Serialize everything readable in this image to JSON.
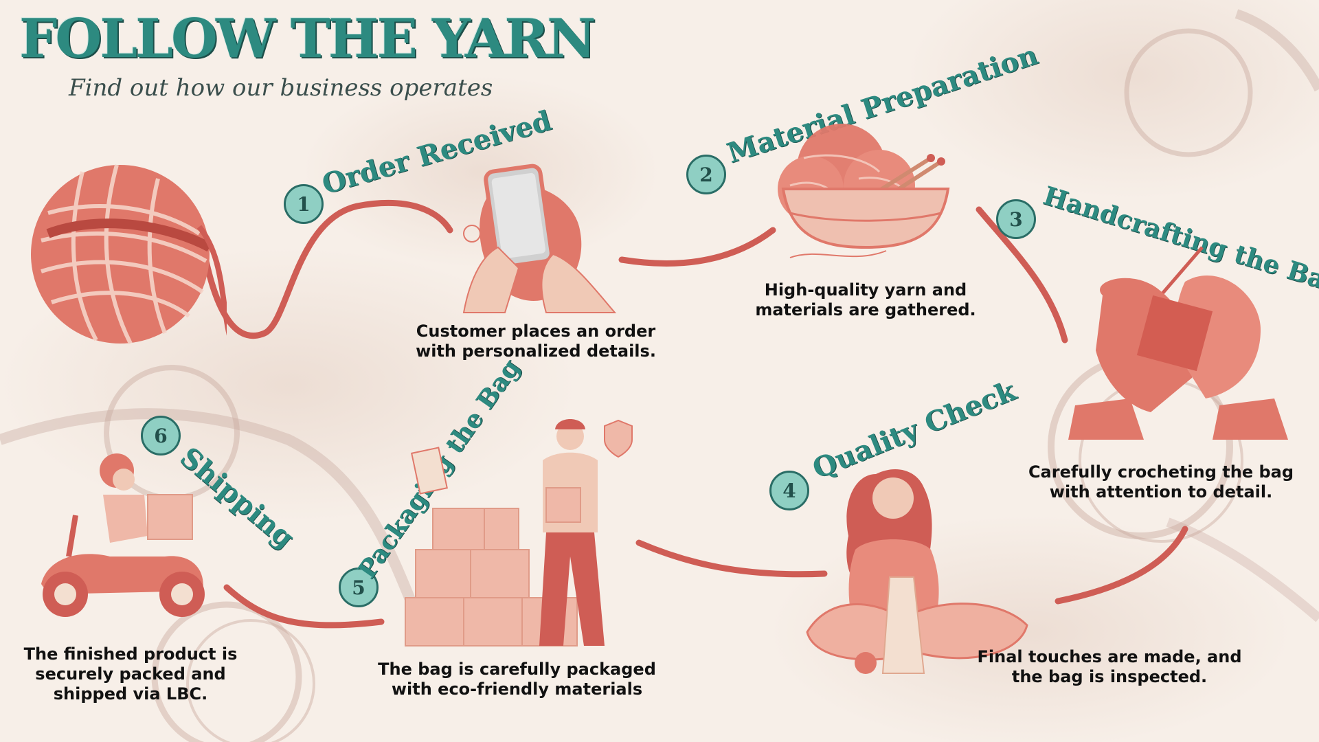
{
  "header": {
    "title": "FOLLOW THE YARN",
    "subtitle": "Find out how our business operates"
  },
  "colors": {
    "accent_teal": "#2d8a80",
    "badge_teal": "#8fcfc3",
    "coral": "#e0786a",
    "yarn_line": "#cf5d55",
    "background": "#f7efe8"
  },
  "steps": [
    {
      "number": "1",
      "title": "Order Received",
      "description": "Customer places an order with personalized details.",
      "icon": "smartphone-order-icon"
    },
    {
      "number": "2",
      "title": "Material Preparation",
      "description": "High-quality yarn and materials are gathered.",
      "icon": "yarn-basket-icon"
    },
    {
      "number": "3",
      "title": "Handcrafting the Bag",
      "description": "Carefully crocheting the bag with attention to detail.",
      "icon": "crochet-hands-icon"
    },
    {
      "number": "4",
      "title": "Quality Check",
      "description": "Final touches are made, and the bag is inspected.",
      "icon": "woman-knitting-icon"
    },
    {
      "number": "5",
      "title": "Packaging the Bag",
      "description": "The bag is carefully packaged with eco-friendly materials",
      "icon": "delivery-man-boxes-icon"
    },
    {
      "number": "6",
      "title": "Shipping",
      "description": "The finished product is securely packed and shipped via LBC.",
      "icon": "scooter-courier-icon"
    }
  ]
}
